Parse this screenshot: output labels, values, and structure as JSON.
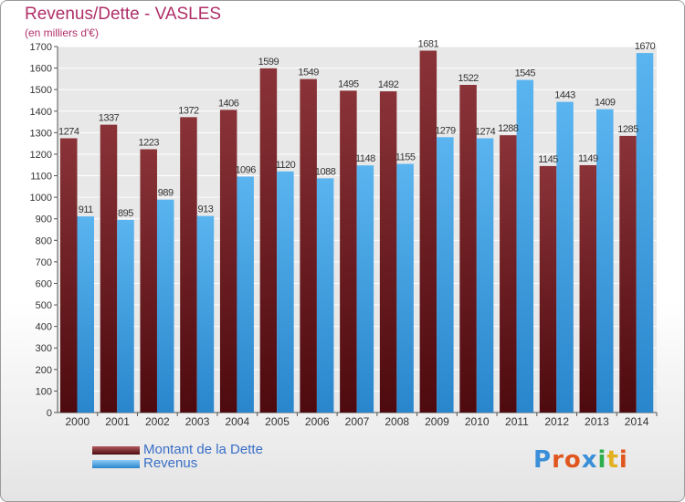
{
  "chart_data": {
    "type": "bar",
    "title": "Revenus/Dette - VASLES",
    "subtitle": "(en milliers d'€)",
    "categories": [
      "2000",
      "2001",
      "2002",
      "2003",
      "2004",
      "2005",
      "2006",
      "2007",
      "2008",
      "2009",
      "2010",
      "2011",
      "2012",
      "2013",
      "2014"
    ],
    "series": [
      {
        "name": "Montant de la Dette",
        "color": "#7a1f24",
        "values": [
          1274,
          1337,
          1223,
          1372,
          1406,
          1599,
          1549,
          1495,
          1492,
          1681,
          1522,
          1288,
          1145,
          1149,
          1285
        ]
      },
      {
        "name": "Revenus",
        "color": "#4aa8e8",
        "values": [
          911,
          895,
          989,
          913,
          1096,
          1120,
          1088,
          1148,
          1155,
          1279,
          1274,
          1545,
          1443,
          1409,
          1670
        ]
      }
    ],
    "ylim": [
      0,
      1700
    ],
    "yticks": [
      0,
      100,
      200,
      300,
      400,
      500,
      600,
      700,
      800,
      900,
      1000,
      1100,
      1200,
      1300,
      1400,
      1500,
      1600,
      1700
    ],
    "grid": true,
    "legend_position": "bottom-left"
  },
  "logo": {
    "text": "Proxiti",
    "letters": [
      "P",
      "r",
      "o",
      "x",
      "i",
      "t",
      "i"
    ],
    "colors": [
      "#3a8fd8",
      "#e0561e",
      "#e0561e",
      "#3a8fd8",
      "#2fae4e",
      "#e3b020",
      "#e0561e"
    ]
  }
}
